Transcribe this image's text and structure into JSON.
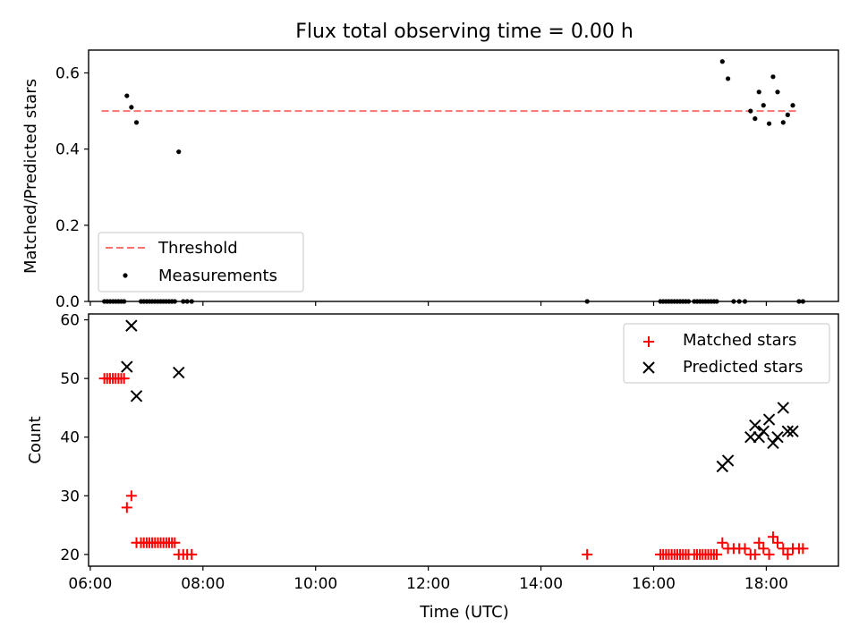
{
  "title": "Flux total observing time = 0.00 h",
  "chart_data": [
    {
      "type": "scatter",
      "panel": "top",
      "ylabel": "Matched/Predicted stars",
      "xlim": [
        5.97,
        19.28
      ],
      "ylim": [
        0,
        0.66
      ],
      "x_ticks": [
        6,
        8,
        10,
        12,
        14,
        16,
        18
      ],
      "y_ticks": [
        0.0,
        0.2,
        0.4,
        0.6
      ],
      "y_tick_labels": [
        "0.0",
        "0.2",
        "0.4",
        "0.6"
      ],
      "threshold": {
        "value": 0.5,
        "x_range": [
          6.2,
          18.55
        ],
        "color": "#ff7070"
      },
      "legend": {
        "position": "lower-left",
        "entries": [
          "Threshold",
          "Measurements"
        ]
      },
      "series": [
        {
          "name": "Measurements",
          "color": "#000000",
          "x": [
            6.25,
            6.3,
            6.35,
            6.4,
            6.45,
            6.5,
            6.55,
            6.6,
            6.65,
            6.73,
            6.82,
            6.9,
            6.95,
            7.0,
            7.05,
            7.1,
            7.15,
            7.2,
            7.25,
            7.3,
            7.35,
            7.4,
            7.45,
            7.5,
            7.57,
            7.65,
            7.72,
            7.8,
            14.82,
            16.12,
            16.17,
            16.22,
            16.27,
            16.32,
            16.37,
            16.42,
            16.47,
            16.52,
            16.57,
            16.62,
            16.72,
            16.77,
            16.82,
            16.87,
            16.92,
            16.97,
            17.02,
            17.07,
            17.12,
            17.22,
            17.32,
            17.42,
            17.52,
            17.62,
            17.72,
            17.8,
            17.87,
            17.95,
            18.05,
            18.12,
            18.2,
            18.3,
            18.38,
            18.47,
            18.58,
            18.65
          ],
          "y": [
            0,
            0,
            0,
            0,
            0,
            0,
            0,
            0,
            0.54,
            0.51,
            0.47,
            0,
            0,
            0,
            0,
            0,
            0,
            0,
            0,
            0,
            0,
            0,
            0,
            0,
            0.393,
            0,
            0,
            0,
            0,
            0,
            0,
            0,
            0,
            0,
            0,
            0,
            0,
            0,
            0,
            0,
            0,
            0,
            0,
            0,
            0,
            0,
            0,
            0,
            0,
            0.63,
            0.585,
            0,
            0,
            0,
            0.5,
            0.48,
            0.55,
            0.515,
            0.467,
            0.59,
            0.55,
            0.47,
            0.49,
            0.515,
            0,
            0
          ]
        }
      ]
    },
    {
      "type": "scatter",
      "panel": "bottom",
      "xlabel": "Time (UTC)",
      "ylabel": "Count",
      "xlim": [
        5.97,
        19.28
      ],
      "ylim": [
        18,
        61
      ],
      "x_ticks": [
        6,
        8,
        10,
        12,
        14,
        16,
        18
      ],
      "x_tick_labels": [
        "06:00",
        "08:00",
        "10:00",
        "12:00",
        "14:00",
        "16:00",
        "18:00"
      ],
      "y_ticks": [
        20,
        30,
        40,
        50,
        60
      ],
      "y_tick_labels": [
        "20",
        "30",
        "40",
        "50",
        "60"
      ],
      "legend": {
        "position": "upper-right",
        "entries": [
          "Matched stars",
          "Predicted stars"
        ]
      },
      "series": [
        {
          "name": "Matched stars",
          "marker": "plus",
          "color": "#ff0000",
          "x": [
            6.25,
            6.3,
            6.35,
            6.4,
            6.45,
            6.5,
            6.55,
            6.6,
            6.65,
            6.73,
            6.82,
            6.9,
            6.95,
            7.0,
            7.05,
            7.1,
            7.15,
            7.2,
            7.25,
            7.3,
            7.35,
            7.4,
            7.45,
            7.5,
            7.57,
            7.65,
            7.72,
            7.8,
            14.82,
            16.12,
            16.17,
            16.22,
            16.27,
            16.32,
            16.37,
            16.42,
            16.47,
            16.52,
            16.57,
            16.62,
            16.72,
            16.77,
            16.82,
            16.87,
            16.92,
            16.97,
            17.02,
            17.07,
            17.12,
            17.22,
            17.32,
            17.42,
            17.52,
            17.62,
            17.72,
            17.8,
            17.87,
            17.95,
            18.05,
            18.12,
            18.2,
            18.3,
            18.38,
            18.47,
            18.58,
            18.65
          ],
          "y": [
            50,
            50,
            50,
            50,
            50,
            50,
            50,
            50,
            28,
            30,
            22,
            22,
            22,
            22,
            22,
            22,
            22,
            22,
            22,
            22,
            22,
            22,
            22,
            22,
            20,
            20,
            20,
            20,
            20,
            20,
            20,
            20,
            20,
            20,
            20,
            20,
            20,
            20,
            20,
            20,
            20,
            20,
            20,
            20,
            20,
            20,
            20,
            20,
            20,
            22,
            21,
            21,
            21,
            21,
            20,
            20,
            22,
            21,
            20,
            23,
            22,
            21,
            20,
            21,
            21,
            21
          ]
        },
        {
          "name": "Predicted stars",
          "marker": "x",
          "color": "#000000",
          "x": [
            6.65,
            6.73,
            6.82,
            7.57,
            17.22,
            17.32,
            17.72,
            17.8,
            17.87,
            17.95,
            18.05,
            18.12,
            18.2,
            18.3,
            18.38,
            18.47
          ],
          "y": [
            52,
            59,
            47,
            51,
            35,
            36,
            40,
            42,
            40,
            41,
            43,
            39,
            40,
            45,
            41,
            41
          ]
        }
      ]
    }
  ]
}
